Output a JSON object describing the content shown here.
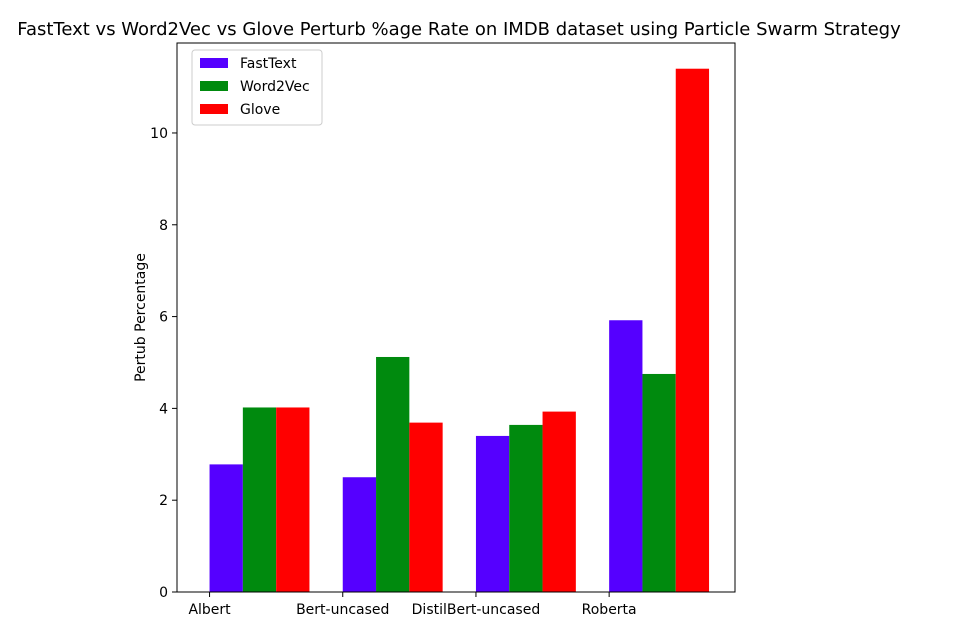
{
  "chart_data": {
    "type": "bar",
    "title": "FastText vs Word2Vec vs Glove Perturb %age Rate on IMDB dataset using Particle Swarm Strategy",
    "xlabel": "",
    "ylabel": "Pertub Percentage",
    "categories": [
      "Albert",
      "Bert-uncased",
      "DistilBert-uncased",
      "Roberta"
    ],
    "series": [
      {
        "name": "FastText",
        "color": "#5500ff",
        "values": [
          2.78,
          2.5,
          3.4,
          5.92
        ]
      },
      {
        "name": "Word2Vec",
        "color": "#008a0e",
        "values": [
          4.02,
          5.12,
          3.64,
          4.75
        ]
      },
      {
        "name": "Glove",
        "color": "#ff0000",
        "values": [
          4.02,
          3.69,
          3.93,
          11.4
        ]
      }
    ],
    "ylim": [
      0,
      11.96
    ],
    "yticks": [
      0,
      2,
      4,
      6,
      8,
      10
    ],
    "legend": "top-left",
    "grid": false
  }
}
